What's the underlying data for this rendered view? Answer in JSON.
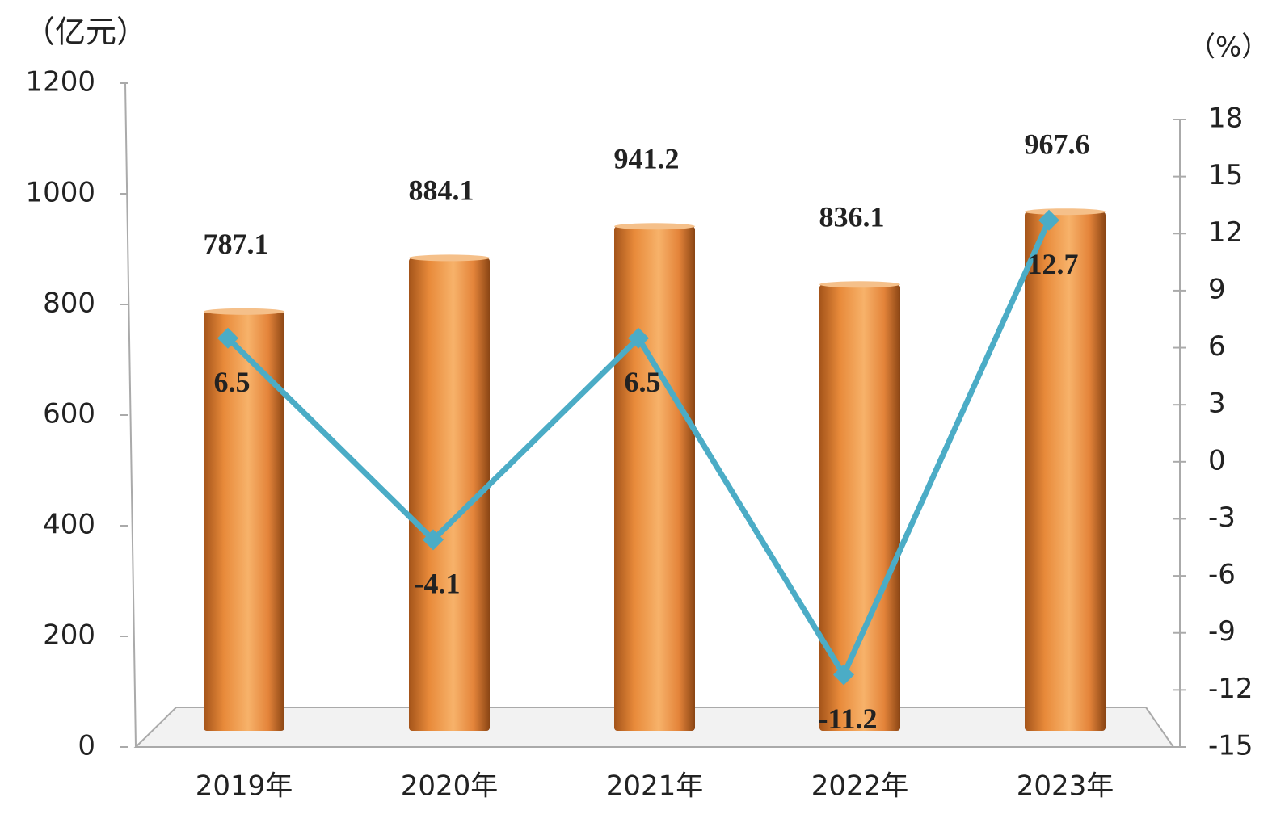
{
  "chart_data": {
    "type": "bar",
    "y_label": "（亿元）",
    "y2_label": "（%）",
    "categories": [
      "2019年",
      "2020年",
      "2021年",
      "2022年",
      "2023年"
    ],
    "series": [
      {
        "type": "bar",
        "color": "#e8903c",
        "values": [
          787.1,
          884.1,
          941.2,
          836.1,
          967.6
        ]
      },
      {
        "type": "line",
        "axis": "y2",
        "color": "#4bacc6",
        "values": [
          6.5,
          -4.1,
          6.5,
          -11.2,
          12.7
        ]
      }
    ],
    "ylim": [
      0,
      1200
    ],
    "yticks": [
      0,
      200,
      400,
      600,
      800,
      1000,
      1200
    ],
    "y2lim": [
      -15,
      18
    ],
    "y2ticks": [
      -15,
      -12,
      -9,
      -6,
      -3,
      0,
      3,
      6,
      9,
      12,
      15,
      18
    ]
  }
}
